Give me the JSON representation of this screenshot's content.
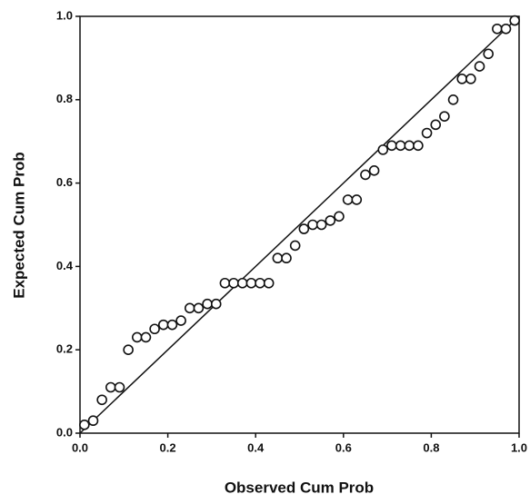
{
  "chart_data": {
    "type": "scatter",
    "x_label": "Observed Cum Prob",
    "y_label": "Expected Cum Prob",
    "x": [
      0.01,
      0.03,
      0.05,
      0.07,
      0.09,
      0.11,
      0.13,
      0.15,
      0.17,
      0.19,
      0.21,
      0.23,
      0.25,
      0.27,
      0.29,
      0.31,
      0.33,
      0.35,
      0.37,
      0.39,
      0.41,
      0.43,
      0.45,
      0.47,
      0.49,
      0.51,
      0.53,
      0.55,
      0.57,
      0.59,
      0.61,
      0.63,
      0.65,
      0.67,
      0.69,
      0.71,
      0.73,
      0.75,
      0.77,
      0.79,
      0.81,
      0.83,
      0.85,
      0.87,
      0.89,
      0.91,
      0.93,
      0.95,
      0.97,
      0.99
    ],
    "values": [
      0.02,
      0.03,
      0.08,
      0.11,
      0.11,
      0.2,
      0.23,
      0.23,
      0.25,
      0.26,
      0.26,
      0.27,
      0.3,
      0.3,
      0.31,
      0.31,
      0.36,
      0.36,
      0.36,
      0.36,
      0.36,
      0.36,
      0.42,
      0.42,
      0.45,
      0.49,
      0.5,
      0.5,
      0.51,
      0.52,
      0.56,
      0.56,
      0.62,
      0.63,
      0.68,
      0.69,
      0.69,
      0.69,
      0.69,
      0.72,
      0.74,
      0.76,
      0.8,
      0.85,
      0.85,
      0.88,
      0.91,
      0.97,
      0.97,
      0.99
    ],
    "xlim": [
      0,
      1
    ],
    "ylim": [
      0,
      1
    ],
    "xticks": [
      {
        "value": 0,
        "label": "0.0"
      },
      0.2,
      0.4,
      0.6,
      0.8,
      {
        "value": 1,
        "label": "1.0"
      }
    ],
    "yticks": [
      {
        "value": 0,
        "label": "0.0"
      },
      0.2,
      0.4,
      0.6,
      0.8,
      {
        "value": 1,
        "label": "1.0"
      }
    ],
    "grid": false
  }
}
